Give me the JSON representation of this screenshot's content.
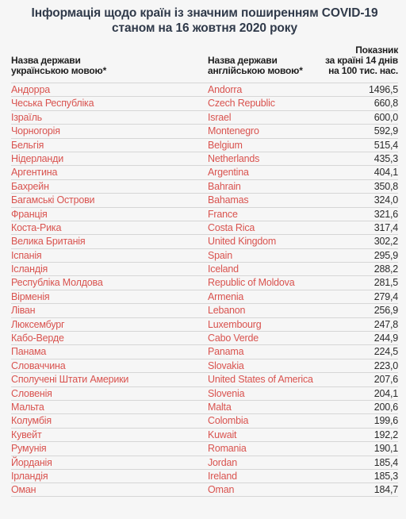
{
  "title": {
    "line1": "Інформація щодо країн із значним поширенням COVID-19",
    "line2": "станом на 16 жовтня 2020 року"
  },
  "columns": {
    "ua_line1": "Назва держави",
    "ua_line2": "українською мовою*",
    "en_line1": "Назва держави",
    "en_line2": "англійською мовою*",
    "val_line1": "Показник",
    "val_line2": "за країні 14 днів",
    "val_line3": "на 100 тис. нас."
  },
  "colors": {
    "country_link": "#d9534f",
    "title": "#303a4a",
    "background": "#f6f6f6"
  },
  "rows": [
    {
      "ua": "Андорра",
      "en": "Andorra",
      "value": "1496,5"
    },
    {
      "ua": "Чеська Республіка",
      "en": "Czech Republic",
      "value": "660,8"
    },
    {
      "ua": "Ізраїль",
      "en": "Israel",
      "value": "600,0"
    },
    {
      "ua": "Чорногорія",
      "en": "Montenegro",
      "value": "592,9"
    },
    {
      "ua": "Бельгія",
      "en": "Belgium",
      "value": "515,4"
    },
    {
      "ua": "Нідерланди",
      "en": "Netherlands",
      "value": "435,3"
    },
    {
      "ua": "Аргентина",
      "en": "Argentina",
      "value": "404,1"
    },
    {
      "ua": "Бахрейн",
      "en": "Bahrain",
      "value": "350,8"
    },
    {
      "ua": "Багамські Острови",
      "en": "Bahamas",
      "value": "324,0"
    },
    {
      "ua": "Франція",
      "en": "France",
      "value": "321,6"
    },
    {
      "ua": "Коста-Рика",
      "en": "Costa Rica",
      "value": "317,4"
    },
    {
      "ua": "Велика Британія",
      "en": "United Kingdom",
      "value": "302,2"
    },
    {
      "ua": "Іспанія",
      "en": "Spain",
      "value": "295,9"
    },
    {
      "ua": "Ісландія",
      "en": "Iceland",
      "value": "288,2"
    },
    {
      "ua": "Республіка Молдова",
      "en": "Republic of Moldova",
      "value": "281,5"
    },
    {
      "ua": "Вірменія",
      "en": "Armenia",
      "value": "279,4"
    },
    {
      "ua": "Ліван",
      "en": "Lebanon",
      "value": "256,9"
    },
    {
      "ua": "Люксембург",
      "en": "Luxembourg",
      "value": "247,8"
    },
    {
      "ua": "Кабо-Верде",
      "en": "Cabo Verde",
      "value": "244,9"
    },
    {
      "ua": "Панама",
      "en": "Panama",
      "value": "224,5"
    },
    {
      "ua": "Словаччина",
      "en": "Slovakia",
      "value": "223,0"
    },
    {
      "ua": "Сполучені Штати Америки",
      "en": "United States of America",
      "value": "207,6"
    },
    {
      "ua": "Словенія",
      "en": "Slovenia",
      "value": "204,1"
    },
    {
      "ua": "Мальта",
      "en": "Malta",
      "value": "200,6"
    },
    {
      "ua": "Колумбія",
      "en": "Colombia",
      "value": "199,6"
    },
    {
      "ua": "Кувейт",
      "en": "Kuwait",
      "value": "192,2"
    },
    {
      "ua": "Румунія",
      "en": "Romania",
      "value": "190,1"
    },
    {
      "ua": "Йорданія",
      "en": "Jordan",
      "value": "185,4"
    },
    {
      "ua": "Ірландія",
      "en": "Ireland",
      "value": "185,3"
    },
    {
      "ua": "Оман",
      "en": "Oman",
      "value": "184,7"
    }
  ]
}
